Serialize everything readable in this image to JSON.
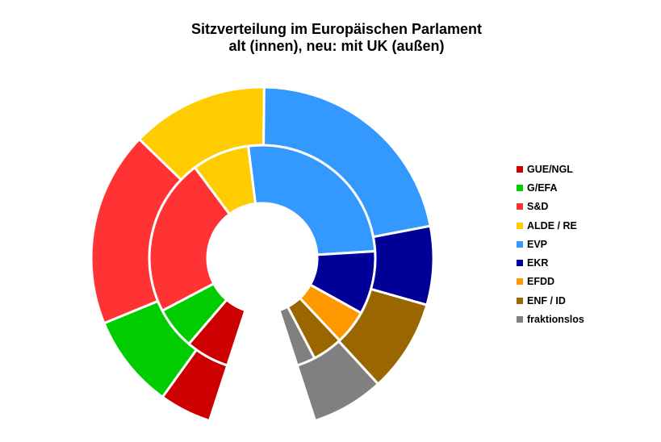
{
  "chart_data": {
    "type": "pie",
    "variant": "nested-donut-semicircle-gap",
    "title": "Sitzverteilung im Europäischen Parlament",
    "subtitle": "alt (innen), neu: mit UK (außen)",
    "legend_position": "right",
    "categories": [
      "GUE/NGL",
      "G/EFA",
      "S&D",
      "ALDE / RE",
      "EVP",
      "EKR",
      "EFDD",
      "ENF / ID",
      "fraktionslos"
    ],
    "colors": [
      "#cc0000",
      "#00cc00",
      "#ff3333",
      "#ffcc00",
      "#3399ff",
      "#000099",
      "#ff9900",
      "#996600",
      "#808080"
    ],
    "series": [
      {
        "ring": "inner",
        "values": [
          52,
          50,
          187,
          68,
          216,
          75,
          41,
          36,
          22
        ]
      },
      {
        "ring": "outer",
        "values": [
          41,
          74,
          154,
          108,
          182,
          62,
          0,
          73,
          57
        ]
      }
    ]
  }
}
